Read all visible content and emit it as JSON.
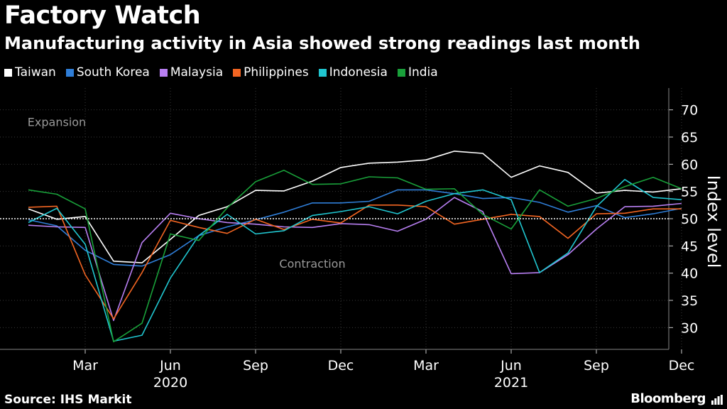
{
  "title": "Factory Watch",
  "subtitle": "Manufacturing activity in Asia showed strong readings last month",
  "source": "Source: IHS Markit",
  "brand": "Bloomberg",
  "colors": {
    "background": "#000000",
    "grid": "#3a3a3a",
    "reference": "#ffffff",
    "annotation": "#9a9a9a"
  },
  "chart_data": {
    "type": "line",
    "title": "Factory Watch",
    "subtitle": "Manufacturing activity in Asia showed strong readings last month",
    "ylabel": "Index level",
    "xlabel": "",
    "ylim": [
      26,
      74
    ],
    "yticks": [
      30,
      35,
      40,
      45,
      50,
      55,
      60,
      65,
      70
    ],
    "reference_line": 50,
    "grid": true,
    "legend_position": "top-left",
    "x": [
      "2020-01",
      "2020-02",
      "2020-03",
      "2020-04",
      "2020-05",
      "2020-06",
      "2020-07",
      "2020-08",
      "2020-09",
      "2020-10",
      "2020-11",
      "2020-12",
      "2021-01",
      "2021-02",
      "2021-03",
      "2021-04",
      "2021-05",
      "2021-06",
      "2021-07",
      "2021-08",
      "2021-09",
      "2021-10",
      "2021-11",
      "2021-12"
    ],
    "x_tick_labels": [
      {
        "x": "2020-03",
        "label": "Mar"
      },
      {
        "x": "2020-06",
        "label": "Jun"
      },
      {
        "x": "2020-09",
        "label": "Sep"
      },
      {
        "x": "2020-12",
        "label": "Dec"
      },
      {
        "x": "2021-03",
        "label": "Mar"
      },
      {
        "x": "2021-06",
        "label": "Jun"
      },
      {
        "x": "2021-09",
        "label": "Sep"
      },
      {
        "x": "2021-12",
        "label": "Dec"
      }
    ],
    "year_labels": [
      {
        "x": "2020-06",
        "label": "2020"
      },
      {
        "x": "2021-06",
        "label": "2021"
      }
    ],
    "annotations": [
      {
        "text": "Expansion",
        "x": "2020-02",
        "y": 67
      },
      {
        "text": "Contraction",
        "x": "2020-11",
        "y": 41
      }
    ],
    "series": [
      {
        "name": "Taiwan",
        "color": "#ffffff",
        "values": [
          51.8,
          49.9,
          50.4,
          42.2,
          41.9,
          46.2,
          50.6,
          52.2,
          55.2,
          55.1,
          56.9,
          59.4,
          60.2,
          60.4,
          60.8,
          62.4,
          62.0,
          57.6,
          59.7,
          58.5,
          54.7,
          55.2,
          54.9,
          55.5
        ]
      },
      {
        "name": "South Korea",
        "color": "#2f7ed8",
        "values": [
          49.8,
          48.7,
          44.2,
          41.6,
          41.3,
          43.4,
          46.9,
          48.5,
          49.8,
          51.2,
          52.9,
          52.9,
          53.2,
          55.3,
          55.3,
          54.6,
          53.7,
          53.9,
          53.0,
          51.2,
          52.4,
          50.2,
          50.9,
          51.9
        ]
      },
      {
        "name": "Malaysia",
        "color": "#b87ff2",
        "values": [
          48.8,
          48.5,
          48.4,
          31.3,
          45.6,
          51.0,
          50.0,
          49.3,
          49.0,
          48.5,
          48.4,
          49.1,
          48.9,
          47.7,
          49.9,
          53.9,
          51.3,
          39.9,
          40.1,
          43.4,
          48.1,
          52.2,
          52.3,
          52.8
        ]
      },
      {
        "name": "Philippines",
        "color": "#f26522",
        "values": [
          52.1,
          52.3,
          39.7,
          31.6,
          40.1,
          49.7,
          48.4,
          47.3,
          49.9,
          48.0,
          49.9,
          49.2,
          52.5,
          52.5,
          52.2,
          49.0,
          49.9,
          50.8,
          50.4,
          46.4,
          50.9,
          51.0,
          51.8,
          51.8
        ]
      },
      {
        "name": "Indonesia",
        "color": "#20c6d0",
        "values": [
          49.3,
          51.9,
          45.3,
          27.5,
          28.6,
          39.1,
          46.9,
          50.8,
          47.2,
          47.8,
          50.6,
          51.3,
          52.2,
          50.9,
          53.2,
          54.6,
          55.3,
          53.5,
          40.1,
          43.7,
          52.2,
          57.2,
          53.9,
          53.5
        ]
      },
      {
        "name": "India",
        "color": "#19a03a",
        "values": [
          55.3,
          54.5,
          51.8,
          27.4,
          30.8,
          47.2,
          46.0,
          52.0,
          56.8,
          58.9,
          56.3,
          56.4,
          57.7,
          57.5,
          55.4,
          55.5,
          50.8,
          48.1,
          55.3,
          52.3,
          53.7,
          55.9,
          57.6,
          55.5
        ]
      }
    ]
  }
}
